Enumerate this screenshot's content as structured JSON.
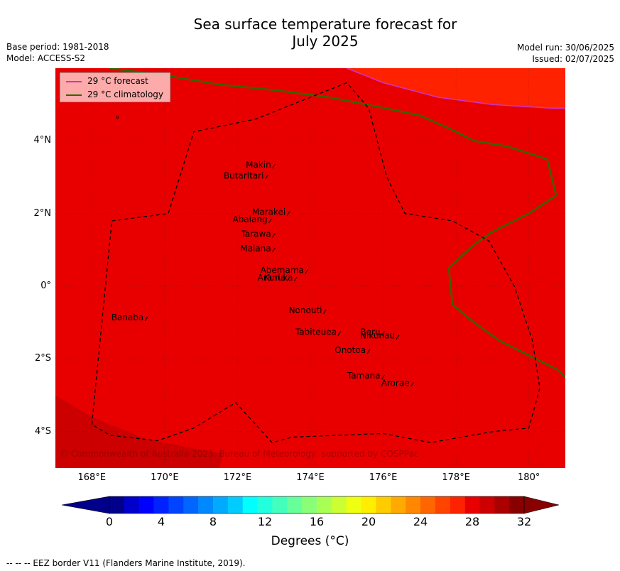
{
  "title_line1": "Sea surface temperature forecast for",
  "title_line2": "July 2025",
  "base_period": "Base period: 1981-2018",
  "model": "Model: ACCESS-S2",
  "model_run": "Model run: 30/06/2025",
  "issued": "Issued: 02/07/2025",
  "legend": [
    {
      "label": "29 °C  forecast",
      "color": "#cc33cc"
    },
    {
      "label": "29 °C  climatology",
      "color": "#336600"
    }
  ],
  "copyright": "© Commonwealth of Australia 2025, Bureau of Meteorology, supported by COSPPac",
  "map": {
    "lon_ticks": [
      "168°E",
      "170°E",
      "172°E",
      "174°E",
      "176°E",
      "178°E",
      "180°"
    ],
    "lat_ticks": [
      "4°N",
      "2°N",
      "0°",
      "2°S",
      "4°S"
    ],
    "lon_range": [
      167,
      181
    ],
    "lat_range": [
      -5,
      6
    ],
    "background_color": "#e80000",
    "warm_region_color": "#ff2200",
    "cool_region_color": "#cc0000",
    "islands": [
      {
        "name": "Makin",
        "lon": 173.0,
        "lat": 3.3
      },
      {
        "name": "Butaritari",
        "lon": 172.8,
        "lat": 3.0
      },
      {
        "name": "Marakei",
        "lon": 173.4,
        "lat": 2.0
      },
      {
        "name": "Abaiang",
        "lon": 172.9,
        "lat": 1.8
      },
      {
        "name": "Tarawa",
        "lon": 173.0,
        "lat": 1.4
      },
      {
        "name": "Maiana",
        "lon": 173.0,
        "lat": 1.0
      },
      {
        "name": "Abemama",
        "lon": 173.9,
        "lat": 0.4
      },
      {
        "name": "Kuria",
        "lon": 173.4,
        "lat": 0.2
      },
      {
        "name": "Aranuka",
        "lon": 173.6,
        "lat": 0.2
      },
      {
        "name": "Nonouti",
        "lon": 174.4,
        "lat": -0.7
      },
      {
        "name": "Banaba",
        "lon": 169.5,
        "lat": -0.9
      },
      {
        "name": "Tabiteuea",
        "lon": 174.8,
        "lat": -1.3
      },
      {
        "name": "Beru",
        "lon": 176.0,
        "lat": -1.3
      },
      {
        "name": "Nikunau",
        "lon": 176.4,
        "lat": -1.4
      },
      {
        "name": "Onotoa",
        "lon": 175.6,
        "lat": -1.8
      },
      {
        "name": "Tamana",
        "lon": 176.0,
        "lat": -2.5
      },
      {
        "name": "Arorae",
        "lon": 176.8,
        "lat": -2.7
      }
    ]
  },
  "colorbar": {
    "tick_labels": [
      "0",
      "4",
      "8",
      "12",
      "16",
      "20",
      "24",
      "28",
      "32"
    ],
    "title": "Degrees (°C)",
    "colors": [
      "#00008b",
      "#0000cd",
      "#0000ff",
      "#0022ff",
      "#0044ff",
      "#0066ff",
      "#0088ff",
      "#00aaff",
      "#00ccff",
      "#00ffff",
      "#22ffdd",
      "#44ffbb",
      "#66ff99",
      "#88ff77",
      "#aaff55",
      "#ccff33",
      "#eeff11",
      "#ffee00",
      "#ffcc00",
      "#ffaa00",
      "#ff8800",
      "#ff6600",
      "#ff4400",
      "#ff2200",
      "#e80000",
      "#cc0000",
      "#aa0000",
      "#880000"
    ]
  },
  "footnote": "--  --  -- EEZ border V11 (Flanders Marine Institute, 2019)."
}
